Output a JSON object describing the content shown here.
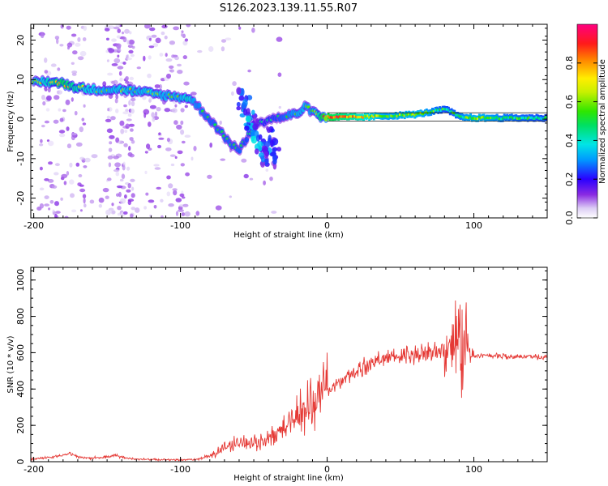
{
  "title": "S126.2023.139.11.55.R07",
  "chart_data": [
    {
      "type": "heatmap",
      "xlabel": "Height of straight line (km)",
      "ylabel": "Frequency (Hz)",
      "xlim": [
        -202,
        150
      ],
      "ylim": [
        -25,
        24
      ],
      "xticks": [
        -200,
        -100,
        0,
        100
      ],
      "yticks": [
        -20,
        -10,
        0,
        10,
        20
      ],
      "colorbar": {
        "label": "Normalized spectral amplitude",
        "range": [
          0.0,
          1.0
        ],
        "ticks": [
          0.0,
          0.2,
          0.4,
          0.6,
          0.8
        ]
      },
      "ridge": [
        {
          "x": -200,
          "y": 9.5,
          "a": 0.45
        },
        {
          "x": -190,
          "y": 9.5,
          "a": 0.55
        },
        {
          "x": -180,
          "y": 9.0,
          "a": 0.65
        },
        {
          "x": -170,
          "y": 8.0,
          "a": 0.55
        },
        {
          "x": -160,
          "y": 7.5,
          "a": 0.5
        },
        {
          "x": -150,
          "y": 7.5,
          "a": 0.45
        },
        {
          "x": -140,
          "y": 7.5,
          "a": 0.5
        },
        {
          "x": -130,
          "y": 7.0,
          "a": 0.45
        },
        {
          "x": -120,
          "y": 6.5,
          "a": 0.5
        },
        {
          "x": -110,
          "y": 6.0,
          "a": 0.45
        },
        {
          "x": -100,
          "y": 5.5,
          "a": 0.45
        },
        {
          "x": -95,
          "y": 5.5,
          "a": 0.55
        },
        {
          "x": -90,
          "y": 4.0,
          "a": 0.4
        },
        {
          "x": -80,
          "y": 0.0,
          "a": 0.35
        },
        {
          "x": -70,
          "y": -4.5,
          "a": 0.35
        },
        {
          "x": -60,
          "y": -8.0,
          "a": 0.35
        },
        {
          "x": -50,
          "y": -2.0,
          "a": 0.3
        },
        {
          "x": -40,
          "y": 0.0,
          "a": 0.3
        },
        {
          "x": -30,
          "y": 0.5,
          "a": 0.35
        },
        {
          "x": -20,
          "y": 1.5,
          "a": 0.45
        },
        {
          "x": -15,
          "y": 3.0,
          "a": 0.45
        },
        {
          "x": -10,
          "y": 2.0,
          "a": 0.4
        },
        {
          "x": -5,
          "y": 0.5,
          "a": 0.6
        },
        {
          "x": 0,
          "y": 0.5,
          "a": 0.85
        }
      ],
      "branches": [
        {
          "x": -58,
          "y": 5.0,
          "a": 0.25
        },
        {
          "x": -55,
          "y": 3.0,
          "a": 0.25
        },
        {
          "x": -52,
          "y": 0.0,
          "a": 0.3
        },
        {
          "x": -48,
          "y": -3.0,
          "a": 0.3
        },
        {
          "x": -45,
          "y": -6.0,
          "a": 0.3
        },
        {
          "x": -42,
          "y": -9.0,
          "a": 0.25
        },
        {
          "x": -38,
          "y": -4.0,
          "a": 0.22
        },
        {
          "x": -35,
          "y": -9.5,
          "a": 0.2
        }
      ],
      "band": [
        {
          "x": 0,
          "y": 0.5,
          "a": 0.9
        },
        {
          "x": 20,
          "y": 0.5,
          "a": 0.75
        },
        {
          "x": 40,
          "y": 0.8,
          "a": 0.55
        },
        {
          "x": 60,
          "y": 1.2,
          "a": 0.6
        },
        {
          "x": 80,
          "y": 2.5,
          "a": 0.45
        },
        {
          "x": 90,
          "y": 0.5,
          "a": 0.5
        },
        {
          "x": 100,
          "y": 0.3,
          "a": 0.6
        },
        {
          "x": 120,
          "y": 0.3,
          "a": 0.5
        },
        {
          "x": 150,
          "y": 0.3,
          "a": 0.45
        }
      ]
    },
    {
      "type": "line",
      "xlabel": "Height of straight line (km)",
      "ylabel": "SNR (10 * v/v)",
      "xlim": [
        -202,
        150
      ],
      "ylim": [
        0,
        1070
      ],
      "xticks": [
        -200,
        -100,
        0,
        100
      ],
      "yticks": [
        0,
        200,
        400,
        600,
        800,
        1000
      ],
      "color": "#e53935",
      "series": [
        {
          "x": [
            -202,
            -190,
            -180,
            -175,
            -170,
            -160,
            -150,
            -145,
            -140,
            -130,
            -120,
            -110,
            -100,
            -90,
            -80,
            -70,
            -60,
            -50,
            -40,
            -30,
            -20,
            -10,
            0,
            10,
            20,
            30,
            40,
            50,
            60,
            70,
            80,
            85,
            90,
            95,
            100,
            110,
            120,
            130,
            140,
            150
          ],
          "values": [
            15,
            22,
            35,
            45,
            25,
            20,
            25,
            35,
            25,
            15,
            12,
            10,
            10,
            12,
            30,
            80,
            110,
            100,
            120,
            180,
            260,
            330,
            390,
            450,
            500,
            550,
            570,
            580,
            590,
            600,
            610,
            640,
            650,
            590,
            580,
            585,
            580,
            580,
            578,
            578
          ]
        }
      ]
    }
  ]
}
